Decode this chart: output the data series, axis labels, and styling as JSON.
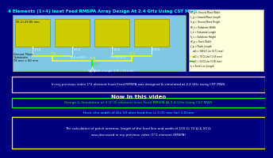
{
  "title": "4 Elements (1×4) Inset Feed RMSPA Array Design At 2.4 GHz Using CST MWS",
  "bg_color": "#000080",
  "title_color": "#00FFFF",
  "patch_color": "#CCCC00",
  "substrate_color": "#7EC8E3",
  "patch_size_text": "35.2×29.85 mm",
  "ground_text_line1": "Ground Plane",
  "ground_text_line2": "Substrate",
  "ground_text_line3": "78 mm × 60 mm",
  "legend_items": [
    "W_g = Ground Plane Width",
    "L_g = Ground Plane Length",
    "h_g = Ground Plane Height",
    "W_s = Substrate Width",
    "L_s = Substrate Length",
    "h_s = Substrate Height",
    "W_p = Patch Width",
    "L_p = Patch Length",
    "wΩ = 100 Ω Line (0.71 mm)",
    "wΩ = 70 Ω Line (1.65 mm)",
    "wΩ = 50 Ω Line (3.05 mm)",
    "h = Feed Line Length"
  ],
  "prev_video_text": "In my previous video 1*2 element Inset Feed RMSPA was designed & simulated at 2.4 GHz using CST MWS",
  "now_text": "Now In this video",
  "design_text": "Design & Simulation of 4 (1*4) element Inset Feed RMSPA At 2.4 GHz Using CST MWS",
  "width_text": "Here, the width of the 50 ohm feed line is 3.05 mm (or) 2.8 mm",
  "calc_text_line1": "The calculation of patch antenna, length of the feed line and width of 100 Ω, 70 Ω & 50 Ω",
  "calc_text_line2": "was discussed in my previous video (1*2 element RMSPA)",
  "gap_text": "Gap Width × Length: 0.75 × 10.1 mm"
}
